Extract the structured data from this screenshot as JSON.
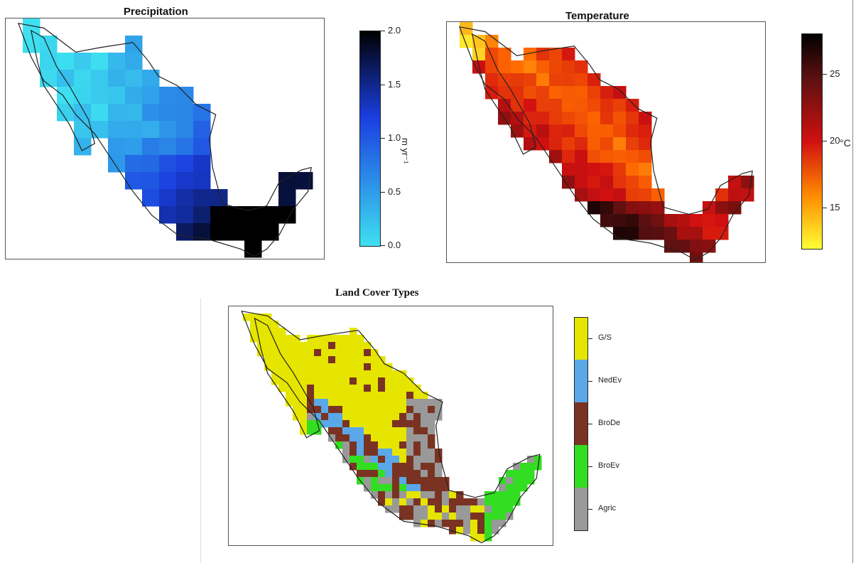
{
  "panels": {
    "precipitation": {
      "title": "Precipitation",
      "unit_label": "m yr⁻¹",
      "ticks": [
        "2.0",
        "1.5",
        "1.0",
        "0.5",
        "0.0"
      ],
      "range": [
        0.0,
        2.0
      ],
      "colors": [
        "#3ee0f0",
        "#1a3ee0",
        "#000000"
      ]
    },
    "temperature": {
      "title": "Temperature",
      "unit_label": "°C",
      "ticks": [
        "25",
        "20",
        "15"
      ],
      "range": [
        12,
        28
      ],
      "colors": [
        "#ffff33",
        "#ff6a00",
        "#d11010",
        "#5a1010",
        "#000000"
      ]
    },
    "landcover": {
      "title": "Land Cover Types",
      "classes": [
        {
          "label": "G/S",
          "color": "#e5e500"
        },
        {
          "label": "NedEv",
          "color": "#5aa8e8"
        },
        {
          "label": "BroDe",
          "color": "#7a3322"
        },
        {
          "label": "BroEv",
          "color": "#33dd22"
        },
        {
          "label": "Agric",
          "color": "#999999"
        }
      ]
    }
  }
}
